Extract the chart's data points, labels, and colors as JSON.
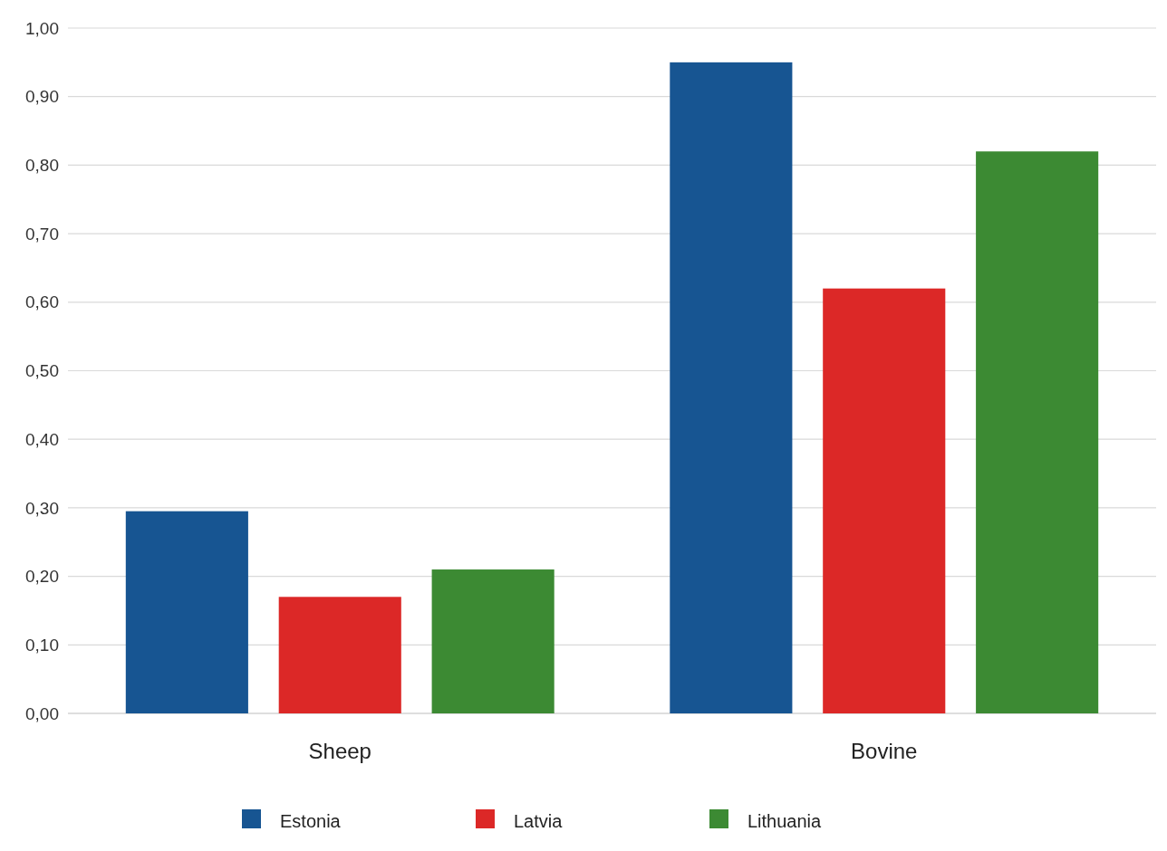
{
  "chart_data": {
    "type": "bar",
    "categories": [
      "Sheep",
      "Bovine"
    ],
    "series": [
      {
        "name": "Estonia",
        "color": "#175592",
        "values": [
          0.295,
          0.95
        ]
      },
      {
        "name": "Latvia",
        "color": "#dc2827",
        "values": [
          0.17,
          0.62
        ]
      },
      {
        "name": "Lithuania",
        "color": "#3c8a33",
        "values": [
          0.21,
          0.82
        ]
      }
    ],
    "ylim": [
      0,
      1
    ],
    "yticks": [
      {
        "value": 0,
        "label": "0,00"
      },
      {
        "value": 0.1,
        "label": "0,10"
      },
      {
        "value": 0.2,
        "label": "0,20"
      },
      {
        "value": 0.3,
        "label": "0,30"
      },
      {
        "value": 0.4,
        "label": "0,40"
      },
      {
        "value": 0.5,
        "label": "0,50"
      },
      {
        "value": 0.6,
        "label": "0,60"
      },
      {
        "value": 0.7,
        "label": "0,70"
      },
      {
        "value": 0.8,
        "label": "0,80"
      },
      {
        "value": 0.9,
        "label": "0,90"
      },
      {
        "value": 1,
        "label": "1,00"
      }
    ],
    "grid": "y",
    "legend": "bottom"
  }
}
